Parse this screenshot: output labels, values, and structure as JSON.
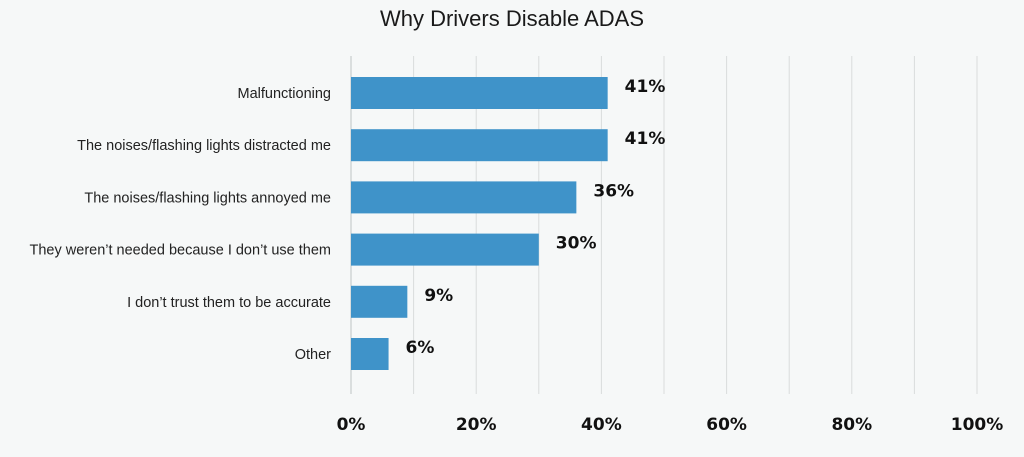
{
  "chart_data": {
    "type": "bar",
    "orientation": "horizontal",
    "title": "Why Drivers Disable ADAS",
    "categories": [
      "Malfunctioning",
      "The noises/flashing lights distracted me",
      "The noises/flashing lights annoyed me",
      "They weren’t needed because I don’t use them",
      "I don’t trust them to be accurate",
      "Other"
    ],
    "values": [
      41,
      41,
      36,
      30,
      9,
      6
    ],
    "value_labels": [
      "41%",
      "41%",
      "36%",
      "30%",
      "9%",
      "6%"
    ],
    "x_ticks": [
      "0%",
      "20%",
      "40%",
      "60%",
      "80%",
      "100%"
    ],
    "xlim": [
      0,
      100
    ],
    "grid": true,
    "legend": "none",
    "bar_color": "#3f93c9"
  }
}
